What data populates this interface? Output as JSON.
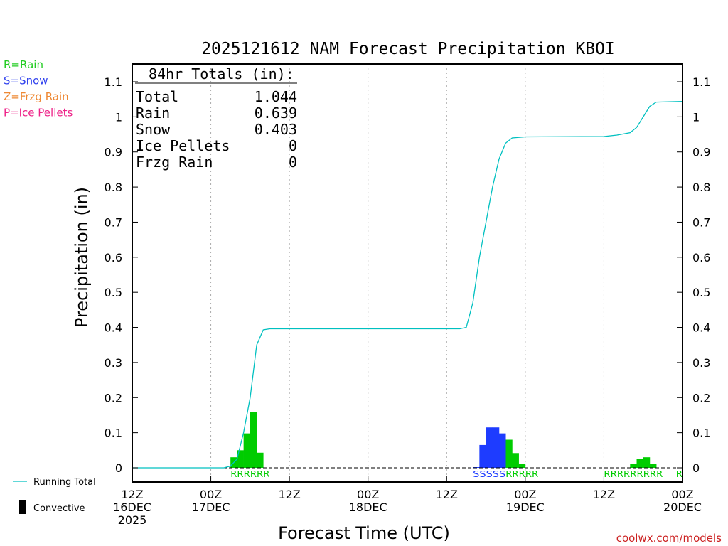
{
  "chart_data": {
    "type": "bar",
    "title": "2025121612 NAM Forecast Precipitation KBOI",
    "ylabel": "Precipitation (in)",
    "xlabel": "Forecast Time (UTC)",
    "ylim": [
      0,
      1.1
    ],
    "xlim_hours": [
      0,
      84
    ],
    "y_ticks": [
      "0",
      "0.1",
      "0.2",
      "0.3",
      "0.4",
      "0.5",
      "0.6",
      "0.7",
      "0.8",
      "0.9",
      "1",
      "1.1"
    ],
    "x_ticks": [
      {
        "hour": 0,
        "line1": "12Z",
        "line2": "16DEC",
        "line3": "2025"
      },
      {
        "hour": 12,
        "line1": "00Z",
        "line2": "17DEC",
        "line3": ""
      },
      {
        "hour": 24,
        "line1": "12Z",
        "line2": "",
        "line3": ""
      },
      {
        "hour": 36,
        "line1": "00Z",
        "line2": "18DEC",
        "line3": ""
      },
      {
        "hour": 48,
        "line1": "12Z",
        "line2": "",
        "line3": ""
      },
      {
        "hour": 60,
        "line1": "00Z",
        "line2": "19DEC",
        "line3": ""
      },
      {
        "hour": 72,
        "line1": "12Z",
        "line2": "",
        "line3": ""
      },
      {
        "hour": 84,
        "line1": "00Z",
        "line2": "20DEC",
        "line3": ""
      }
    ],
    "series": [
      {
        "name": "Rain",
        "color": "#00cc00",
        "bars": [
          {
            "hour": 16,
            "value": 0.03
          },
          {
            "hour": 17,
            "value": 0.05
          },
          {
            "hour": 18,
            "value": 0.098
          },
          {
            "hour": 19,
            "value": 0.158
          },
          {
            "hour": 20,
            "value": 0.043
          },
          {
            "hour": 58,
            "value": 0.08
          },
          {
            "hour": 59,
            "value": 0.042
          },
          {
            "hour": 60,
            "value": 0.012
          },
          {
            "hour": 77,
            "value": 0.012
          },
          {
            "hour": 78,
            "value": 0.025
          },
          {
            "hour": 79,
            "value": 0.03
          },
          {
            "hour": 80,
            "value": 0.012
          }
        ]
      },
      {
        "name": "Snow",
        "color": "#1e3cff",
        "bars": [
          {
            "hour": 53,
            "value": 0.002
          },
          {
            "hour": 54,
            "value": 0.065
          },
          {
            "hour": 55,
            "value": 0.115
          },
          {
            "hour": 56,
            "value": 0.115
          },
          {
            "hour": 57,
            "value": 0.098
          }
        ]
      }
    ],
    "running_total": {
      "name": "Running Total",
      "color": "#00c0c0",
      "points": [
        [
          0,
          0
        ],
        [
          14,
          0
        ],
        [
          15,
          0.005
        ],
        [
          16,
          0.025
        ],
        [
          17,
          0.1
        ],
        [
          18,
          0.2
        ],
        [
          19,
          0.35
        ],
        [
          20,
          0.393
        ],
        [
          21,
          0.396
        ],
        [
          50,
          0.396
        ],
        [
          51,
          0.4
        ],
        [
          52,
          0.47
        ],
        [
          53,
          0.6
        ],
        [
          54,
          0.7
        ],
        [
          55,
          0.8
        ],
        [
          56,
          0.88
        ],
        [
          57,
          0.925
        ],
        [
          58,
          0.94
        ],
        [
          60,
          0.943
        ],
        [
          72,
          0.944
        ],
        [
          74,
          0.948
        ],
        [
          76,
          0.955
        ],
        [
          77,
          0.97
        ],
        [
          78,
          1.0
        ],
        [
          79,
          1.03
        ],
        [
          80,
          1.042
        ],
        [
          84,
          1.044
        ]
      ]
    },
    "precip_type_row": [
      {
        "text": "RRRRRR",
        "color": "#00cc00",
        "start_hour": 15,
        "end_hour": 21
      },
      {
        "text": "SSSSS",
        "color": "#1e3cff",
        "start_hour": 52,
        "end_hour": 57
      },
      {
        "text": "RRRRR",
        "color": "#00cc00",
        "start_hour": 57,
        "end_hour": 62
      },
      {
        "text": "RRRRRRRRR",
        "color": "#00cc00",
        "start_hour": 72,
        "end_hour": 81
      },
      {
        "text": "R",
        "color": "#00cc00",
        "start_hour": 83,
        "end_hour": 84
      }
    ],
    "totals_box": {
      "heading": "84hr Totals (in):",
      "rows": [
        {
          "label": "Total",
          "value": "1.044"
        },
        {
          "label": "Rain",
          "value": "0.639"
        },
        {
          "label": "Snow",
          "value": "0.403"
        },
        {
          "label": "Ice Pellets",
          "value": "0"
        },
        {
          "label": "Frzg Rain",
          "value": "0"
        }
      ]
    },
    "type_legend": [
      {
        "text": "R=Rain",
        "color": "#22cc22"
      },
      {
        "text": "S=Snow",
        "color": "#3344ee"
      },
      {
        "text": "Z=Frzg Rain",
        "color": "#ee8833"
      },
      {
        "text": "P=Ice Pellets",
        "color": "#ee2288"
      }
    ],
    "bottom_legend": {
      "line_label": "Running Total",
      "bar_label": "Convective"
    },
    "credit": "coolwx.com/models"
  }
}
